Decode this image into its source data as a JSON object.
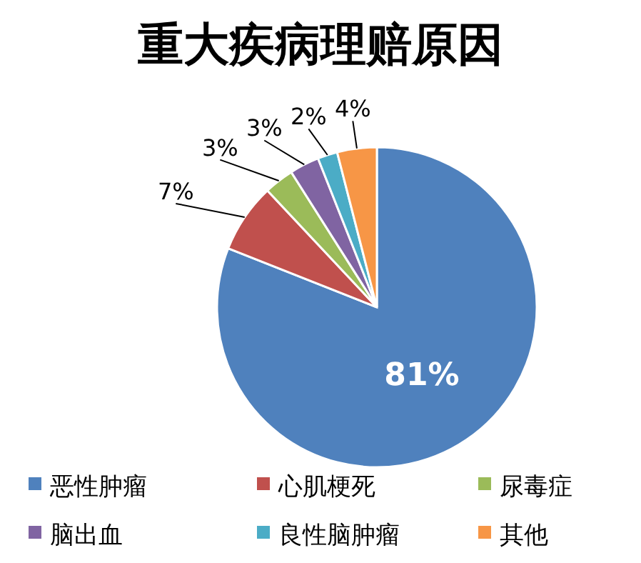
{
  "chart_data": {
    "type": "pie",
    "title": "重大疾病理赔原因",
    "categories": [
      "恶性肿瘤",
      "心肌梗死",
      "尿毒症",
      "脑出血",
      "良性脑肿瘤",
      "其他"
    ],
    "values": [
      81,
      7,
      3,
      3,
      2,
      4
    ],
    "value_labels": [
      "81%",
      "7%",
      "3%",
      "3%",
      "2%",
      "4%"
    ],
    "colors": [
      "#4f81bd",
      "#c0504d",
      "#9bbb59",
      "#8064a2",
      "#4bacc6",
      "#f79646"
    ],
    "legend": "bottom"
  }
}
